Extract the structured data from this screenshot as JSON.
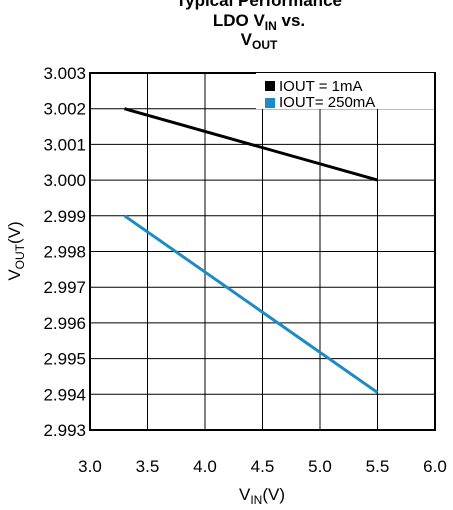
{
  "chart_data": {
    "type": "line",
    "title_main": "Typical Performance",
    "title_line1_prefix": "LDO V",
    "title_line1_sub": "IN",
    "title_line1_suffix": " vs.",
    "title_line2_prefix": "V",
    "title_line2_sub": "OUT",
    "xlabel_prefix": "V",
    "xlabel_sub": "IN",
    "xlabel_suffix": "(V)",
    "ylabel_prefix": "V",
    "ylabel_sub": "OUT",
    "ylabel_suffix": "(V)",
    "xlim": [
      3.0,
      6.0
    ],
    "ylim": [
      2.993,
      3.003
    ],
    "x_ticks": [
      "3.0",
      "3.5",
      "4.0",
      "4.5",
      "5.0",
      "5.5",
      "6.0"
    ],
    "y_ticks": [
      "3.003",
      "3.002",
      "3.001",
      "3.000",
      "2.999",
      "2.998",
      "2.997",
      "2.996",
      "2.995",
      "2.994",
      "2.993"
    ],
    "grid": true,
    "legend_position": "top-right",
    "series": [
      {
        "name": "IOUT = 1mA",
        "color": "#000000",
        "x": [
          3.3,
          5.5
        ],
        "y": [
          3.002,
          3.0
        ]
      },
      {
        "name": "IOUT= 250mA",
        "color": "#1e8bc3",
        "x": [
          3.3,
          5.5
        ],
        "y": [
          2.999,
          2.99405
        ]
      }
    ]
  }
}
